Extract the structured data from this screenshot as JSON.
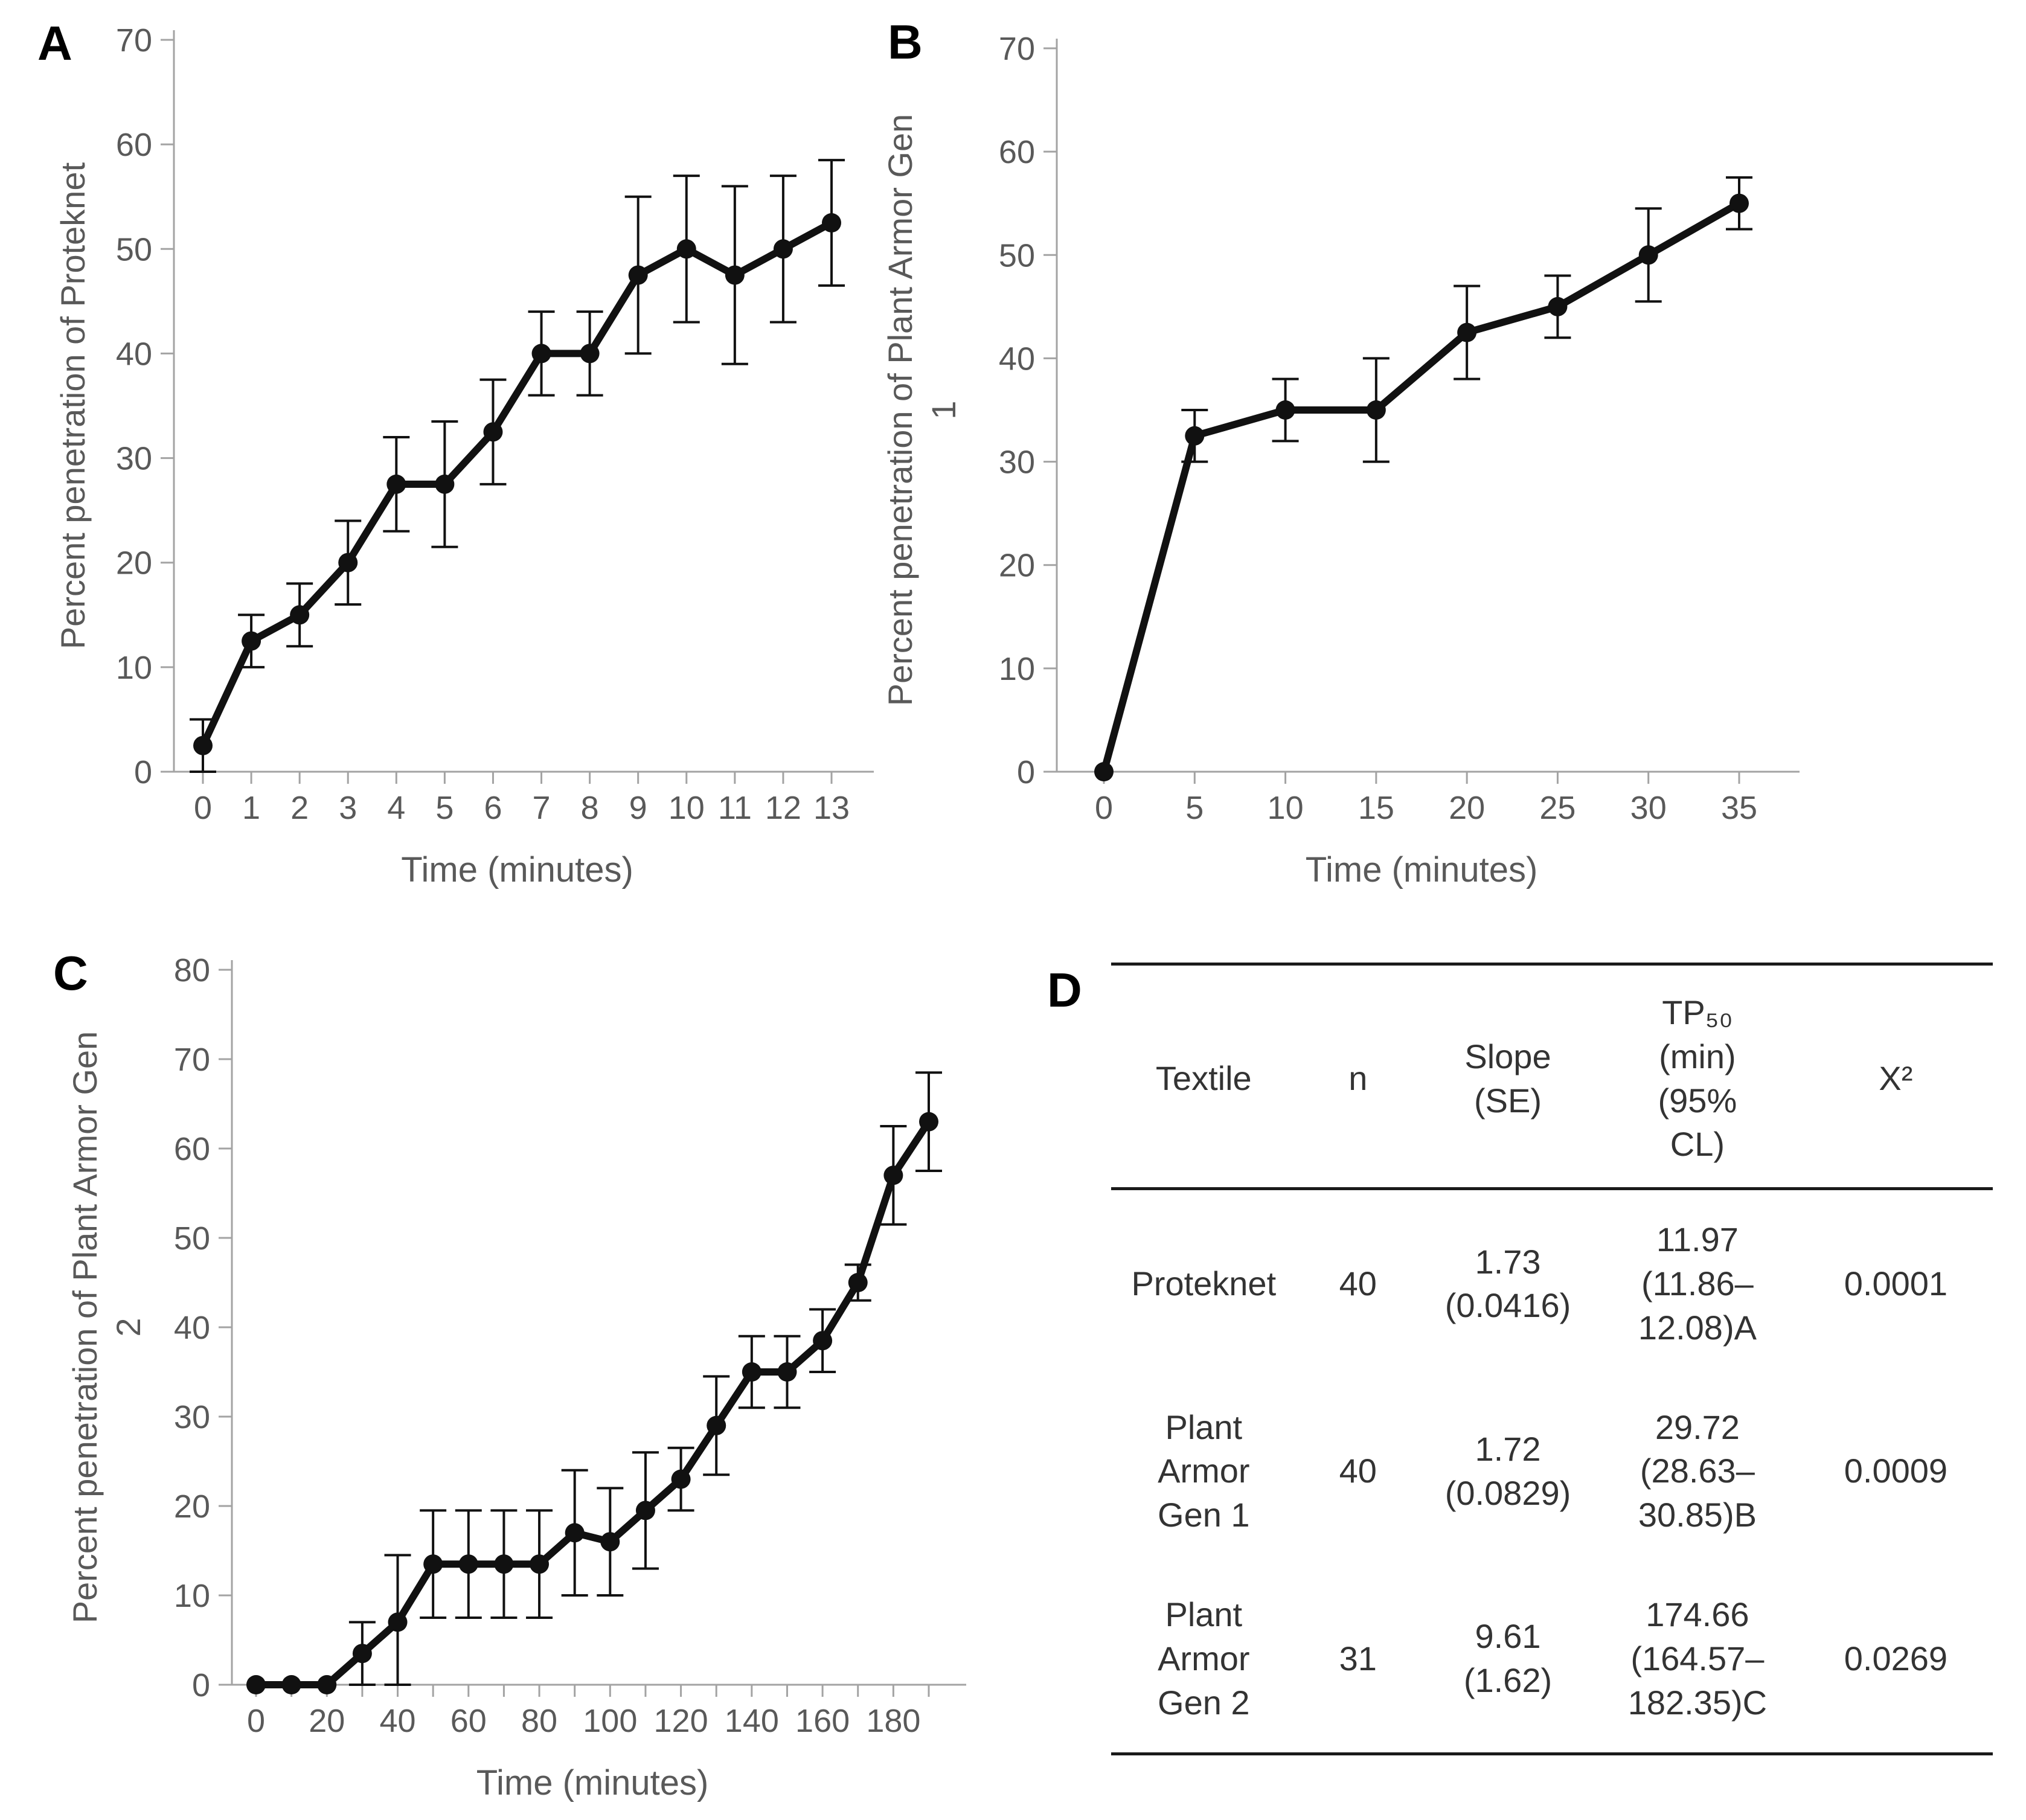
{
  "panels": [
    {
      "letter": "A"
    },
    {
      "letter": "B"
    },
    {
      "letter": "C"
    },
    {
      "letter": "D"
    }
  ],
  "colors": {
    "series": "#111111",
    "axis": "#a3a3a3",
    "tick_text": "#595959",
    "label_text": "#595959",
    "panel_letter": "#000000",
    "table_text": "#333333",
    "table_rule": "#1a1a1a"
  },
  "chart_data": [
    {
      "type": "line",
      "panel": "A",
      "title": "",
      "xlabel": "Time (minutes)",
      "ylabel": "Percent penetration of Proteknet",
      "ylabel_lines": [
        "Percent penetration of Proteknet"
      ],
      "x": [
        0,
        1,
        2,
        3,
        4,
        5,
        6,
        7,
        8,
        9,
        10,
        11,
        12,
        13
      ],
      "y": [
        2.5,
        12.5,
        15,
        20,
        27.5,
        27.5,
        32.5,
        40,
        40,
        47.5,
        50,
        47.5,
        50,
        52.5
      ],
      "yerr": [
        2.5,
        2.5,
        3,
        4,
        4.5,
        6,
        5,
        4,
        4,
        7.5,
        7,
        8.5,
        7,
        6
      ],
      "xlim": [
        0,
        13
      ],
      "ylim": [
        0,
        70
      ],
      "yticks": [
        0,
        10,
        20,
        30,
        40,
        50,
        60,
        70
      ],
      "xticks": [
        0,
        1,
        2,
        3,
        4,
        5,
        6,
        7,
        8,
        9,
        10,
        11,
        12,
        13
      ],
      "xticklabels": [
        "0",
        "1",
        "2",
        "3",
        "4",
        "5",
        "6",
        "7",
        "8",
        "9",
        "10",
        "11",
        "12",
        "13"
      ],
      "grid": false,
      "legend": "none",
      "marker": "circle"
    },
    {
      "type": "line",
      "panel": "B",
      "title": "",
      "xlabel": "Time (minutes)",
      "ylabel": "Percent penetration of Plant Armor Gen 1",
      "ylabel_lines": [
        "Percent penetration of Plant Armor Gen",
        "1"
      ],
      "x": [
        0,
        5,
        10,
        15,
        20,
        25,
        30,
        35
      ],
      "y": [
        0,
        32.5,
        35,
        35,
        42.5,
        45,
        50,
        55
      ],
      "yerr": [
        0,
        2.5,
        3,
        5,
        4.5,
        3,
        4.5,
        2.5
      ],
      "xlim": [
        0,
        35
      ],
      "ylim": [
        0,
        70
      ],
      "yticks": [
        0,
        10,
        20,
        30,
        40,
        50,
        60,
        70
      ],
      "xticks": [
        0,
        5,
        10,
        15,
        20,
        25,
        30,
        35
      ],
      "xticklabels": [
        "0",
        "5",
        "10",
        "15",
        "20",
        "25",
        "30",
        "35"
      ],
      "grid": false,
      "legend": "none",
      "marker": "circle"
    },
    {
      "type": "line",
      "panel": "C",
      "title": "",
      "xlabel": "Time (minutes)",
      "ylabel": "Percent penetration of Plant Armor Gen 2",
      "ylabel_lines": [
        "Percent penetration of Plant Armor Gen",
        "2"
      ],
      "x": [
        0,
        10,
        20,
        30,
        40,
        50,
        60,
        70,
        80,
        90,
        100,
        110,
        120,
        130,
        140,
        150,
        160,
        170,
        180,
        190
      ],
      "y": [
        0,
        0,
        0,
        3.5,
        7,
        13.5,
        13.5,
        13.5,
        13.5,
        17,
        16,
        19.5,
        23,
        29,
        35,
        35,
        38.5,
        45,
        57,
        63
      ],
      "yerr": [
        0,
        0,
        0,
        3.5,
        7.5,
        6,
        6,
        6,
        6,
        7,
        6,
        6.5,
        3.5,
        5.5,
        4,
        4,
        3.5,
        2,
        5.5,
        5.5
      ],
      "xlim": [
        0,
        190
      ],
      "ylim": [
        0,
        80
      ],
      "yticks": [
        0,
        10,
        20,
        30,
        40,
        50,
        60,
        70,
        80
      ],
      "xticks": [
        0,
        10,
        20,
        30,
        40,
        50,
        60,
        70,
        80,
        90,
        100,
        110,
        120,
        130,
        140,
        150,
        160,
        170,
        180,
        190
      ],
      "xticklabels": [
        "0",
        "",
        "20",
        "",
        "40",
        "",
        "60",
        "",
        "80",
        "",
        "100",
        "",
        "120",
        "",
        "140",
        "",
        "160",
        "",
        "180",
        ""
      ],
      "grid": false,
      "legend": "none",
      "marker": "circle"
    },
    {
      "type": "table",
      "panel": "D",
      "columns": [
        "Textile",
        "n",
        "Slope\n(SE)",
        "TP₅₀\n(min)\n(95%\nCL)",
        "X²"
      ],
      "rows": [
        [
          "Proteknet",
          "40",
          "1.73\n(0.0416)",
          "11.97\n(11.86–\n12.08)A",
          "0.0001"
        ],
        [
          "Plant\nArmor\nGen 1",
          "40",
          "1.72\n(0.0829)",
          "29.72\n(28.63–\n30.85)B",
          "0.0009"
        ],
        [
          "Plant\nArmor\nGen 2",
          "31",
          "9.61\n(1.62)",
          "174.66\n(164.57–\n182.35)C",
          "0.0269"
        ]
      ]
    }
  ]
}
